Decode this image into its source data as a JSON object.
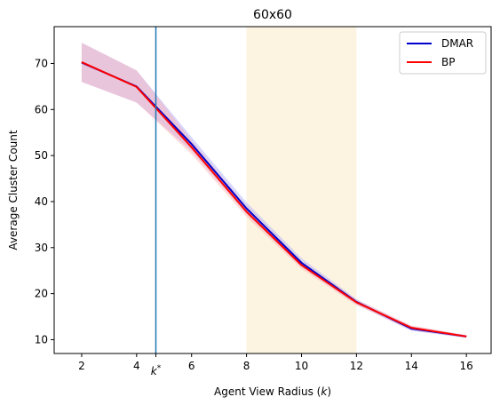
{
  "chart_data": {
    "type": "line",
    "title": "60x60",
    "xlabel_prefix": "Agent View Radius (",
    "xlabel_var": "k",
    "xlabel_suffix": ")",
    "ylabel": "Average Cluster Count",
    "xlim": [
      1.0,
      16.9
    ],
    "ylim": [
      7.0,
      78.0
    ],
    "xticks": [
      2,
      4,
      6,
      8,
      10,
      12,
      14,
      16
    ],
    "yticks": [
      10,
      20,
      30,
      40,
      50,
      60,
      70
    ],
    "x": [
      2,
      4,
      6,
      8,
      10,
      12,
      14,
      16
    ],
    "series": [
      {
        "name": "DMAR",
        "color": "#0000cc",
        "band_color": "#a8a8ff",
        "values": [
          70.2,
          65.0,
          52.5,
          38.5,
          26.7,
          18.2,
          12.4,
          10.7
        ],
        "lower": [
          66.0,
          61.5,
          51.0,
          37.3,
          25.8,
          17.6,
          11.9,
          10.4
        ],
        "upper": [
          74.5,
          68.5,
          54.0,
          39.8,
          27.7,
          18.8,
          12.9,
          11.0
        ]
      },
      {
        "name": "BP",
        "color": "#ff0000",
        "band_color": "#ffb0b0",
        "values": [
          70.3,
          64.9,
          51.8,
          37.8,
          26.2,
          18.1,
          12.6,
          10.7
        ],
        "lower": [
          66.0,
          61.5,
          50.3,
          36.7,
          25.4,
          17.5,
          12.1,
          10.4
        ],
        "upper": [
          74.5,
          68.5,
          53.3,
          38.9,
          27.0,
          18.7,
          13.1,
          11.0
        ]
      }
    ],
    "vline": {
      "x": 4.7,
      "label_main": "k",
      "label_sup": "*",
      "color": "#1f77b4"
    },
    "shaded_region": {
      "x0": 8,
      "x1": 12,
      "color": "#fdf3e1"
    },
    "legend_location": "upper right",
    "grid": false
  }
}
